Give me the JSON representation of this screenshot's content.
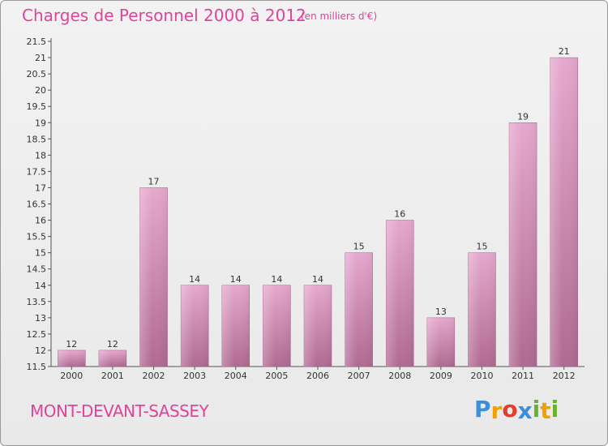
{
  "chart_data": {
    "type": "bar",
    "title": "Charges de Personnel 2000 à 2012",
    "subtitle": "(en milliers d'€)",
    "categories": [
      "2000",
      "2001",
      "2002",
      "2003",
      "2004",
      "2005",
      "2006",
      "2007",
      "2008",
      "2009",
      "2010",
      "2011",
      "2012"
    ],
    "values": [
      12,
      12,
      17,
      14,
      14,
      14,
      14,
      15,
      16,
      13,
      15,
      19,
      21
    ],
    "ylim": [
      11.5,
      21.5
    ],
    "yticks": [
      "11.5",
      "12",
      "12.5",
      "13",
      "13.5",
      "14",
      "14.5",
      "15",
      "15.5",
      "16",
      "16.5",
      "17",
      "17.5",
      "18",
      "18.5",
      "19",
      "19.5",
      "20",
      "20.5",
      "21",
      "21.5"
    ],
    "grid": false,
    "bar_color": "#c8689c"
  },
  "footer": {
    "commune": "MONT-DEVANT-SASSEY",
    "brand": [
      "P",
      "r",
      "o",
      "x",
      "i",
      "t",
      "i"
    ],
    "brand_colors": [
      "#3b8fd6",
      "#f2a000",
      "#e63c2e",
      "#3b8fd6",
      "#69b32b",
      "#f2a000",
      "#69b32b"
    ]
  }
}
